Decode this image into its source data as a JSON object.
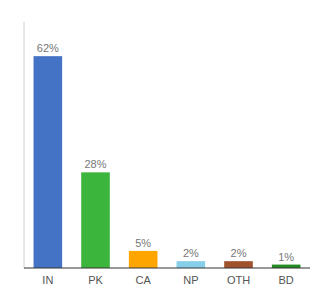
{
  "chart_data": {
    "type": "bar",
    "categories": [
      "IN",
      "PK",
      "CA",
      "NP",
      "OTH",
      "BD"
    ],
    "values": [
      62,
      28,
      5,
      2,
      2,
      1
    ],
    "value_labels": [
      "62%",
      "28%",
      "5%",
      "2%",
      "2%",
      "1%"
    ],
    "colors": [
      "#4472C4",
      "#3CB53C",
      "#FFA500",
      "#87CEEB",
      "#A0522D",
      "#228B22"
    ],
    "ylim": [
      0,
      72
    ],
    "data_labels": true,
    "tick_labels": "x",
    "grid": false
  }
}
